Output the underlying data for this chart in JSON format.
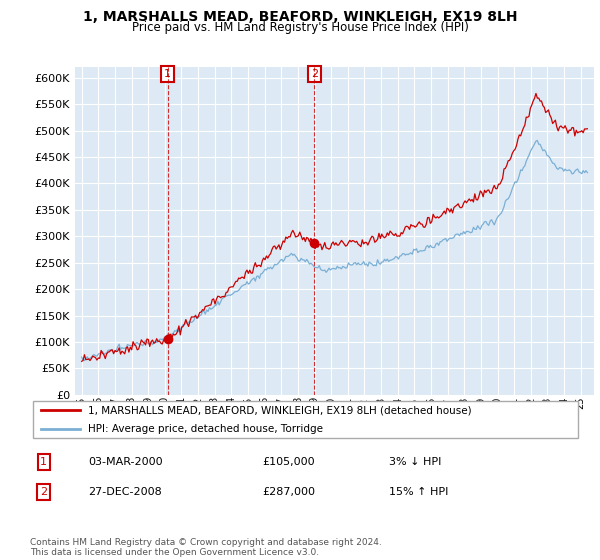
{
  "title": "1, MARSHALLS MEAD, BEAFORD, WINKLEIGH, EX19 8LH",
  "subtitle": "Price paid vs. HM Land Registry's House Price Index (HPI)",
  "legend_line1": "1, MARSHALLS MEAD, BEAFORD, WINKLEIGH, EX19 8LH (detached house)",
  "legend_line2": "HPI: Average price, detached house, Torridge",
  "sale1_label": "1",
  "sale1_date": "03-MAR-2000",
  "sale1_price": "£105,000",
  "sale1_hpi": "3% ↓ HPI",
  "sale2_label": "2",
  "sale2_date": "27-DEC-2008",
  "sale2_price": "£287,000",
  "sale2_hpi": "15% ↑ HPI",
  "footer": "Contains HM Land Registry data © Crown copyright and database right 2024.\nThis data is licensed under the Open Government Licence v3.0.",
  "hpi_color": "#7bafd4",
  "price_color": "#cc0000",
  "background_color": "#ffffff",
  "plot_bg_color": "#ddeaf5",
  "grid_color": "#ffffff",
  "ylim": [
    0,
    620000
  ],
  "yticks": [
    0,
    50000,
    100000,
    150000,
    200000,
    250000,
    300000,
    350000,
    400000,
    450000,
    500000,
    550000,
    600000
  ]
}
